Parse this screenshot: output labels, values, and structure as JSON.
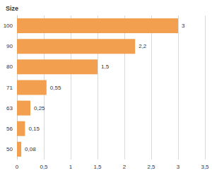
{
  "chart_data": {
    "type": "bar",
    "orientation": "horizontal",
    "y_label": "Size",
    "categories": [
      "50",
      "56",
      "63",
      "71",
      "80",
      "90",
      "100"
    ],
    "values": [
      0.08,
      0.15,
      0.25,
      0.55,
      1.5,
      2.2,
      3
    ],
    "value_labels": [
      "0,08",
      "0,15",
      "0,25",
      "0,55",
      "1,5",
      "2,2",
      "3"
    ],
    "data_labels": true,
    "color": "#f2a04f",
    "xlim": [
      0,
      3.5
    ],
    "xticks": [
      0,
      {
        "value": 0.5,
        "label": "0,5"
      },
      1,
      {
        "value": 1.5,
        "label": "1,5"
      },
      2,
      {
        "value": 2.5,
        "label": "2,5"
      },
      3,
      {
        "value": 3.5,
        "label": "3,5"
      }
    ],
    "grid": true
  }
}
